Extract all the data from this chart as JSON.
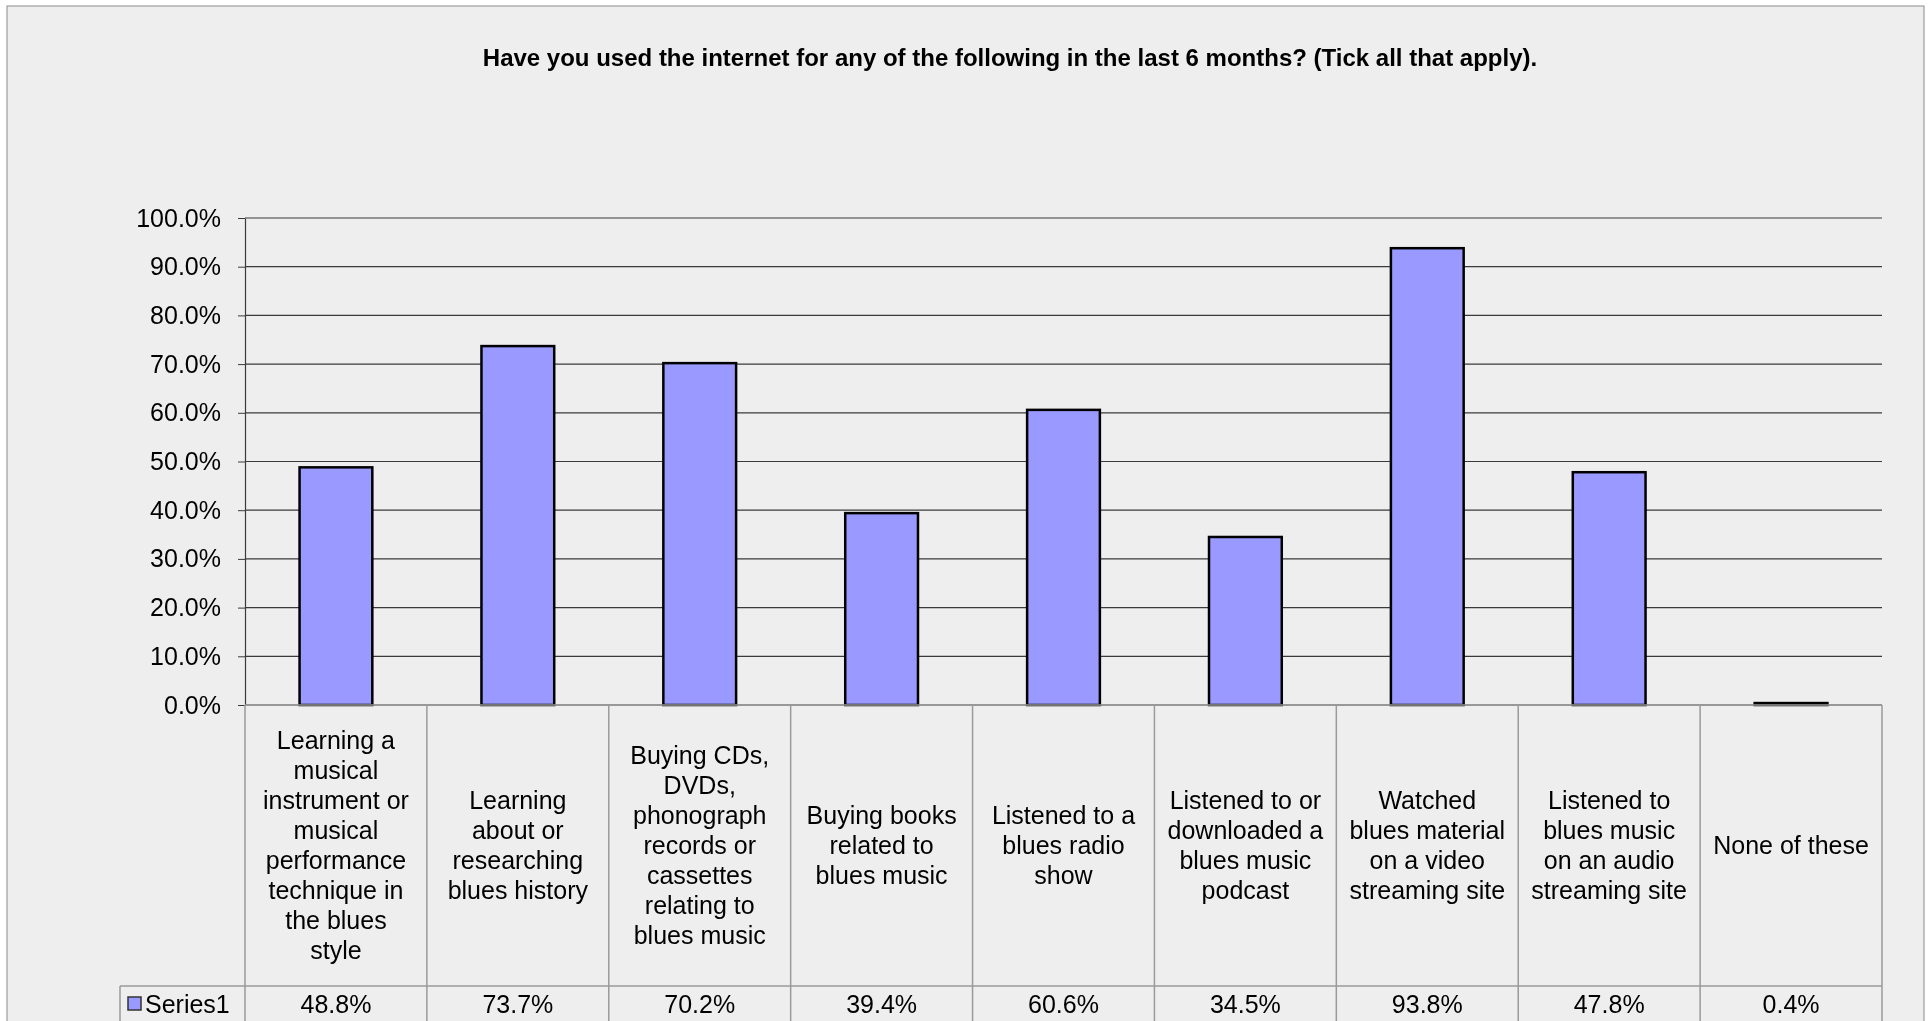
{
  "chart_data": {
    "type": "bar",
    "title": "Have you used the internet for any of the following in the last 6 months? (Tick all that apply).",
    "categories": [
      "Learning a musical instrument or musical performance technique in the blues style",
      "Learning about or researching blues history",
      "Buying CDs, DVDs, phonograph records or cassettes relating to blues music",
      "Buying books related to blues music",
      "Listened to a blues radio show",
      "Listened to or downloaded a blues music podcast",
      "Watched blues material on a video streaming site",
      "Listened to blues music on an audio streaming site",
      "None of these"
    ],
    "series": [
      {
        "name": "Series1",
        "color": "#9999ff",
        "values": [
          48.8,
          73.7,
          70.2,
          39.4,
          60.6,
          34.5,
          93.8,
          47.8,
          0.4
        ],
        "value_labels": [
          "48.8%",
          "73.7%",
          "70.2%",
          "39.4%",
          "60.6%",
          "34.5%",
          "93.8%",
          "47.8%",
          "0.4%"
        ]
      }
    ],
    "ylim": [
      0,
      100
    ],
    "yticks": [
      {
        "value": 0,
        "label": "0.0%"
      },
      {
        "value": 10,
        "label": "10.0%"
      },
      {
        "value": 20,
        "label": "20.0%"
      },
      {
        "value": 30,
        "label": "30.0%"
      },
      {
        "value": 40,
        "label": "40.0%"
      },
      {
        "value": 50,
        "label": "50.0%"
      },
      {
        "value": 60,
        "label": "60.0%"
      },
      {
        "value": 70,
        "label": "70.0%"
      },
      {
        "value": 80,
        "label": "80.0%"
      },
      {
        "value": 90,
        "label": "90.0%"
      },
      {
        "value": 100,
        "label": "100.0%"
      }
    ],
    "grid": "y",
    "legend": "bottom left"
  }
}
